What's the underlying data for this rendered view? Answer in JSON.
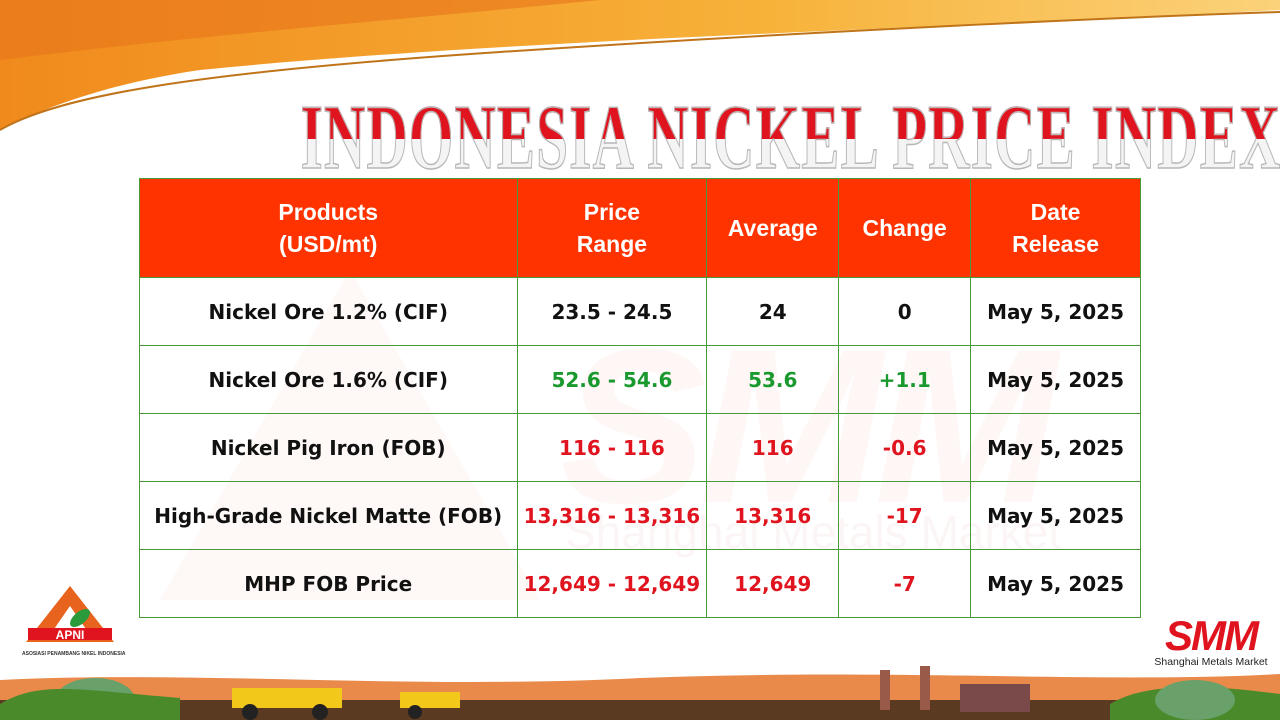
{
  "title": "INDONESIA NICKEL PRICE INDEX",
  "watermark": {
    "brand": "SMM",
    "name": "Shanghai Metals Market"
  },
  "table": {
    "headers": [
      "Products\n(USD/mt)",
      "Price\nRange",
      "Average",
      "Change",
      "Date\nRelease"
    ],
    "rows": [
      {
        "product": "Nickel Ore 1.2% (CIF)",
        "range": "23.5 - 24.5",
        "average": "24",
        "change": "0",
        "date": "May 5, 2025",
        "trend": "flat"
      },
      {
        "product": "Nickel Ore 1.6% (CIF)",
        "range": "52.6 - 54.6",
        "average": "53.6",
        "change": "+1.1",
        "date": "May 5, 2025",
        "trend": "up"
      },
      {
        "product": "Nickel Pig Iron (FOB)",
        "range": "116 - 116",
        "average": "116",
        "change": "-0.6",
        "date": "May 5, 2025",
        "trend": "down"
      },
      {
        "product": "High-Grade Nickel Matte (FOB)",
        "range": "13,316 - 13,316",
        "average": "13,316",
        "change": "-17",
        "date": "May 5, 2025",
        "trend": "down"
      },
      {
        "product": "MHP FOB Price",
        "range": "12,649 - 12,649",
        "average": "12,649",
        "change": "-7",
        "date": "May 5, 2025",
        "trend": "down"
      }
    ]
  },
  "logos": {
    "apni": {
      "name": "APNI",
      "subtitle": "ASOSIASI PENAMBANG NIKEL INDONESIA"
    },
    "smm": {
      "name": "SMM",
      "subtitle": "Shanghai Metals Market"
    }
  },
  "colors": {
    "header": "#ff3300",
    "up": "#1a9a2e",
    "down": "#e0141e",
    "border": "#4a9a3a"
  }
}
